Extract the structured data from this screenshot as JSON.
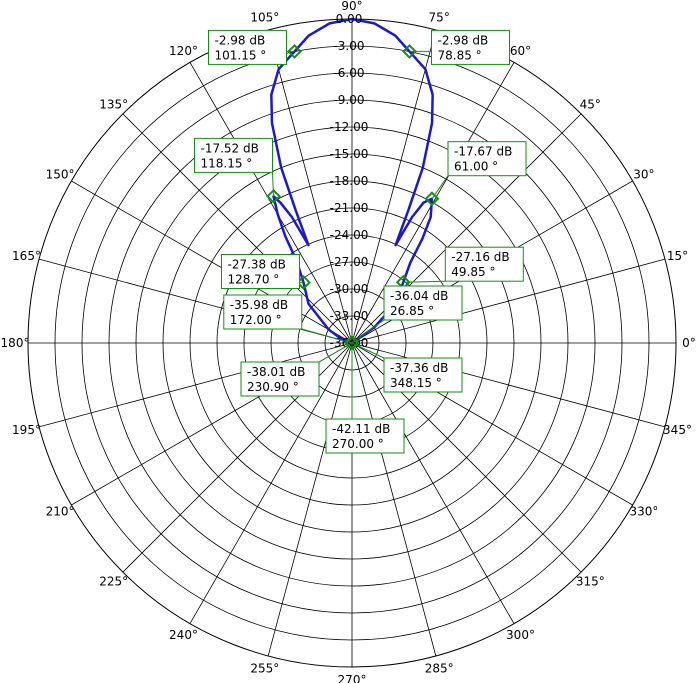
{
  "chart_data": {
    "type": "polar",
    "title": "",
    "radial_axis": {
      "min": -36.0,
      "max": 0.0,
      "step": 3.0,
      "unit": "dB",
      "tick_labels": [
        "0.00",
        "-3.00",
        "-6.00",
        "-9.00",
        "-12.00",
        "-15.00",
        "-18.00",
        "-21.00",
        "-24.00",
        "-27.00",
        "-30.00",
        "-33.00",
        "-36.00"
      ]
    },
    "angular_axis": {
      "step": 15,
      "unit": "deg",
      "zero_direction": "right",
      "rotation": "counterclockwise",
      "tick_labels": [
        "0°",
        "15°",
        "30°",
        "45°",
        "60°",
        "75°",
        "90°",
        "105°",
        "120°",
        "135°",
        "150°",
        "165°",
        "180°",
        "195°",
        "210°",
        "225°",
        "240°",
        "255°",
        "270°",
        "285°",
        "300°",
        "315°",
        "330°",
        "345°"
      ]
    },
    "grid": true,
    "series": [
      {
        "color": "#1a1acc",
        "points": [
          [
            0,
            -36.0
          ],
          [
            15,
            -36.0
          ],
          [
            20,
            -36.0
          ],
          [
            26.85,
            -36.04
          ],
          [
            35,
            -33.0
          ],
          [
            42,
            -29.5
          ],
          [
            49.85,
            -27.16
          ],
          [
            54,
            -25.0
          ],
          [
            56,
            -22.0
          ],
          [
            58,
            -19.5
          ],
          [
            61.0,
            -17.67
          ],
          [
            63,
            -18.5
          ],
          [
            64.5,
            -20.5
          ],
          [
            66,
            -24.1
          ],
          [
            67,
            -20.0
          ],
          [
            68,
            -15.0
          ],
          [
            70,
            -10.0
          ],
          [
            72,
            -7.0
          ],
          [
            75,
            -4.5
          ],
          [
            78.85,
            -2.98
          ],
          [
            82,
            -1.5
          ],
          [
            86,
            -0.4
          ],
          [
            90,
            0.0
          ],
          [
            94,
            -0.4
          ],
          [
            98,
            -1.5
          ],
          [
            101.15,
            -2.98
          ],
          [
            105,
            -4.5
          ],
          [
            108,
            -7.0
          ],
          [
            110,
            -10.0
          ],
          [
            112,
            -15.0
          ],
          [
            113,
            -20.0
          ],
          [
            114,
            -24.1
          ],
          [
            115.5,
            -20.5
          ],
          [
            117,
            -18.5
          ],
          [
            118.15,
            -17.52
          ],
          [
            120,
            -19.5
          ],
          [
            122,
            -22.0
          ],
          [
            124,
            -25.0
          ],
          [
            128.7,
            -27.38
          ],
          [
            138,
            -29.5
          ],
          [
            150,
            -33.0
          ],
          [
            160,
            -34.8
          ],
          [
            172.0,
            -35.98
          ],
          [
            180,
            -36.0
          ],
          [
            195,
            -36.0
          ],
          [
            230.9,
            -38.01
          ],
          [
            270,
            -42.11
          ],
          [
            348.15,
            -37.36
          ],
          [
            360,
            -36.0
          ]
        ]
      }
    ],
    "annotations": [
      {
        "line1": "-2.98 dB",
        "line2": "101.15 °",
        "angle": 101.15,
        "value": -2.98
      },
      {
        "line1": "-2.98 dB",
        "line2": "78.85 °",
        "angle": 78.85,
        "value": -2.98
      },
      {
        "line1": "-17.52 dB",
        "line2": "118.15 °",
        "angle": 118.15,
        "value": -17.52
      },
      {
        "line1": "-17.67 dB",
        "line2": "61.00 °",
        "angle": 61.0,
        "value": -17.67
      },
      {
        "line1": "-27.38 dB",
        "line2": "128.70 °",
        "angle": 128.7,
        "value": -27.38
      },
      {
        "line1": "-27.16 dB",
        "line2": "49.85 °",
        "angle": 49.85,
        "value": -27.16
      },
      {
        "line1": "-35.98 dB",
        "line2": "172.00 °",
        "angle": 172.0,
        "value": -35.98
      },
      {
        "line1": "-36.04 dB",
        "line2": "26.85 °",
        "angle": 26.85,
        "value": -36.04
      },
      {
        "line1": "-38.01 dB",
        "line2": "230.90 °",
        "angle": 230.9,
        "value": -38.01
      },
      {
        "line1": "-37.36 dB",
        "line2": "348.15 °",
        "angle": 348.15,
        "value": -37.36
      },
      {
        "line1": "-42.11 dB",
        "line2": "270.00 °",
        "angle": 270.0,
        "value": -42.11
      }
    ],
    "colors": {
      "grid": "#000000",
      "trace": "#1a1acc",
      "marker": "#1a8a1a",
      "annotation_border": "#1a8a1a",
      "annotation_bg": "#ffffff",
      "leader_line": "#1a8a1a"
    }
  }
}
